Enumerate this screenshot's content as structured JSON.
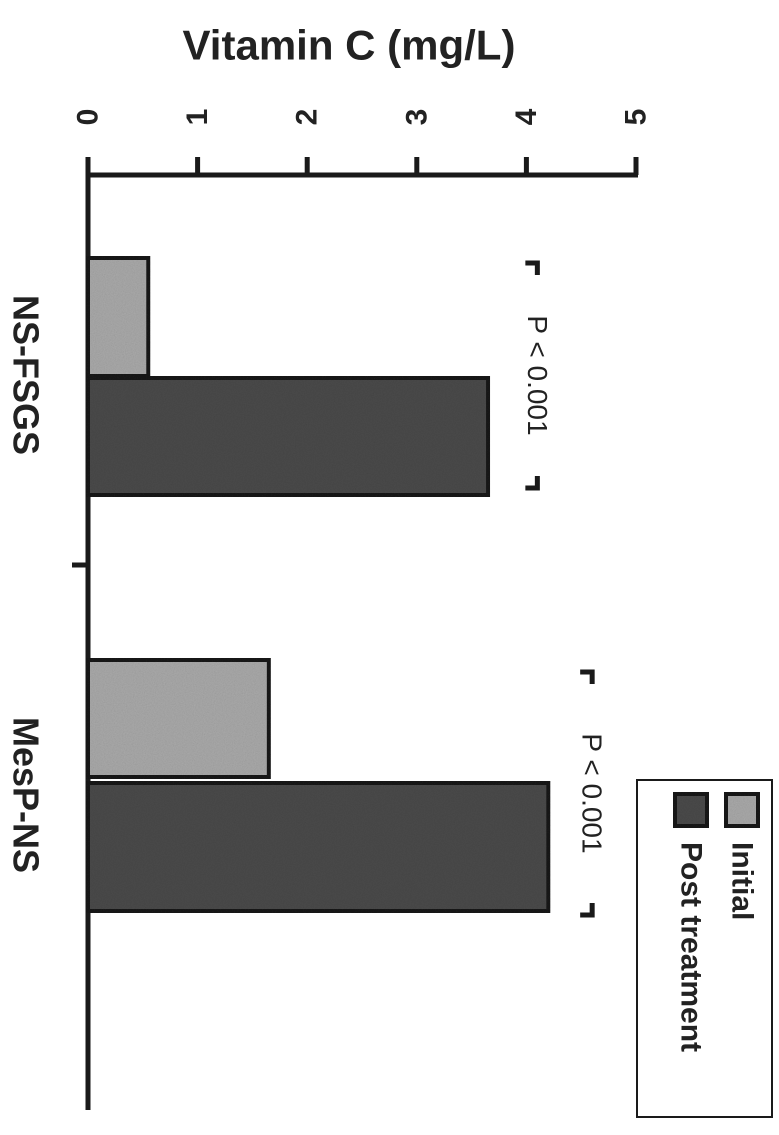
{
  "chart_data": {
    "type": "bar",
    "orientation": "rotated-90-clockwise",
    "ylabel": "Vitamin C (mg/L)",
    "ylim": [
      0,
      5
    ],
    "yticks": [
      "0",
      "1",
      "2",
      "3",
      "4",
      "5"
    ],
    "categories": [
      "NS-FSGS",
      "MesP-NS"
    ],
    "series": [
      {
        "name": "Initial",
        "values": [
          0.55,
          1.65
        ],
        "color": "#a9a9a9"
      },
      {
        "name": "Post treatment",
        "values": [
          3.65,
          4.2
        ],
        "color": "#4a4a4a"
      }
    ],
    "annotations": [
      "P < 0.001",
      "P < 0.001"
    ],
    "legend_position": "bottom-right",
    "grid": false
  }
}
